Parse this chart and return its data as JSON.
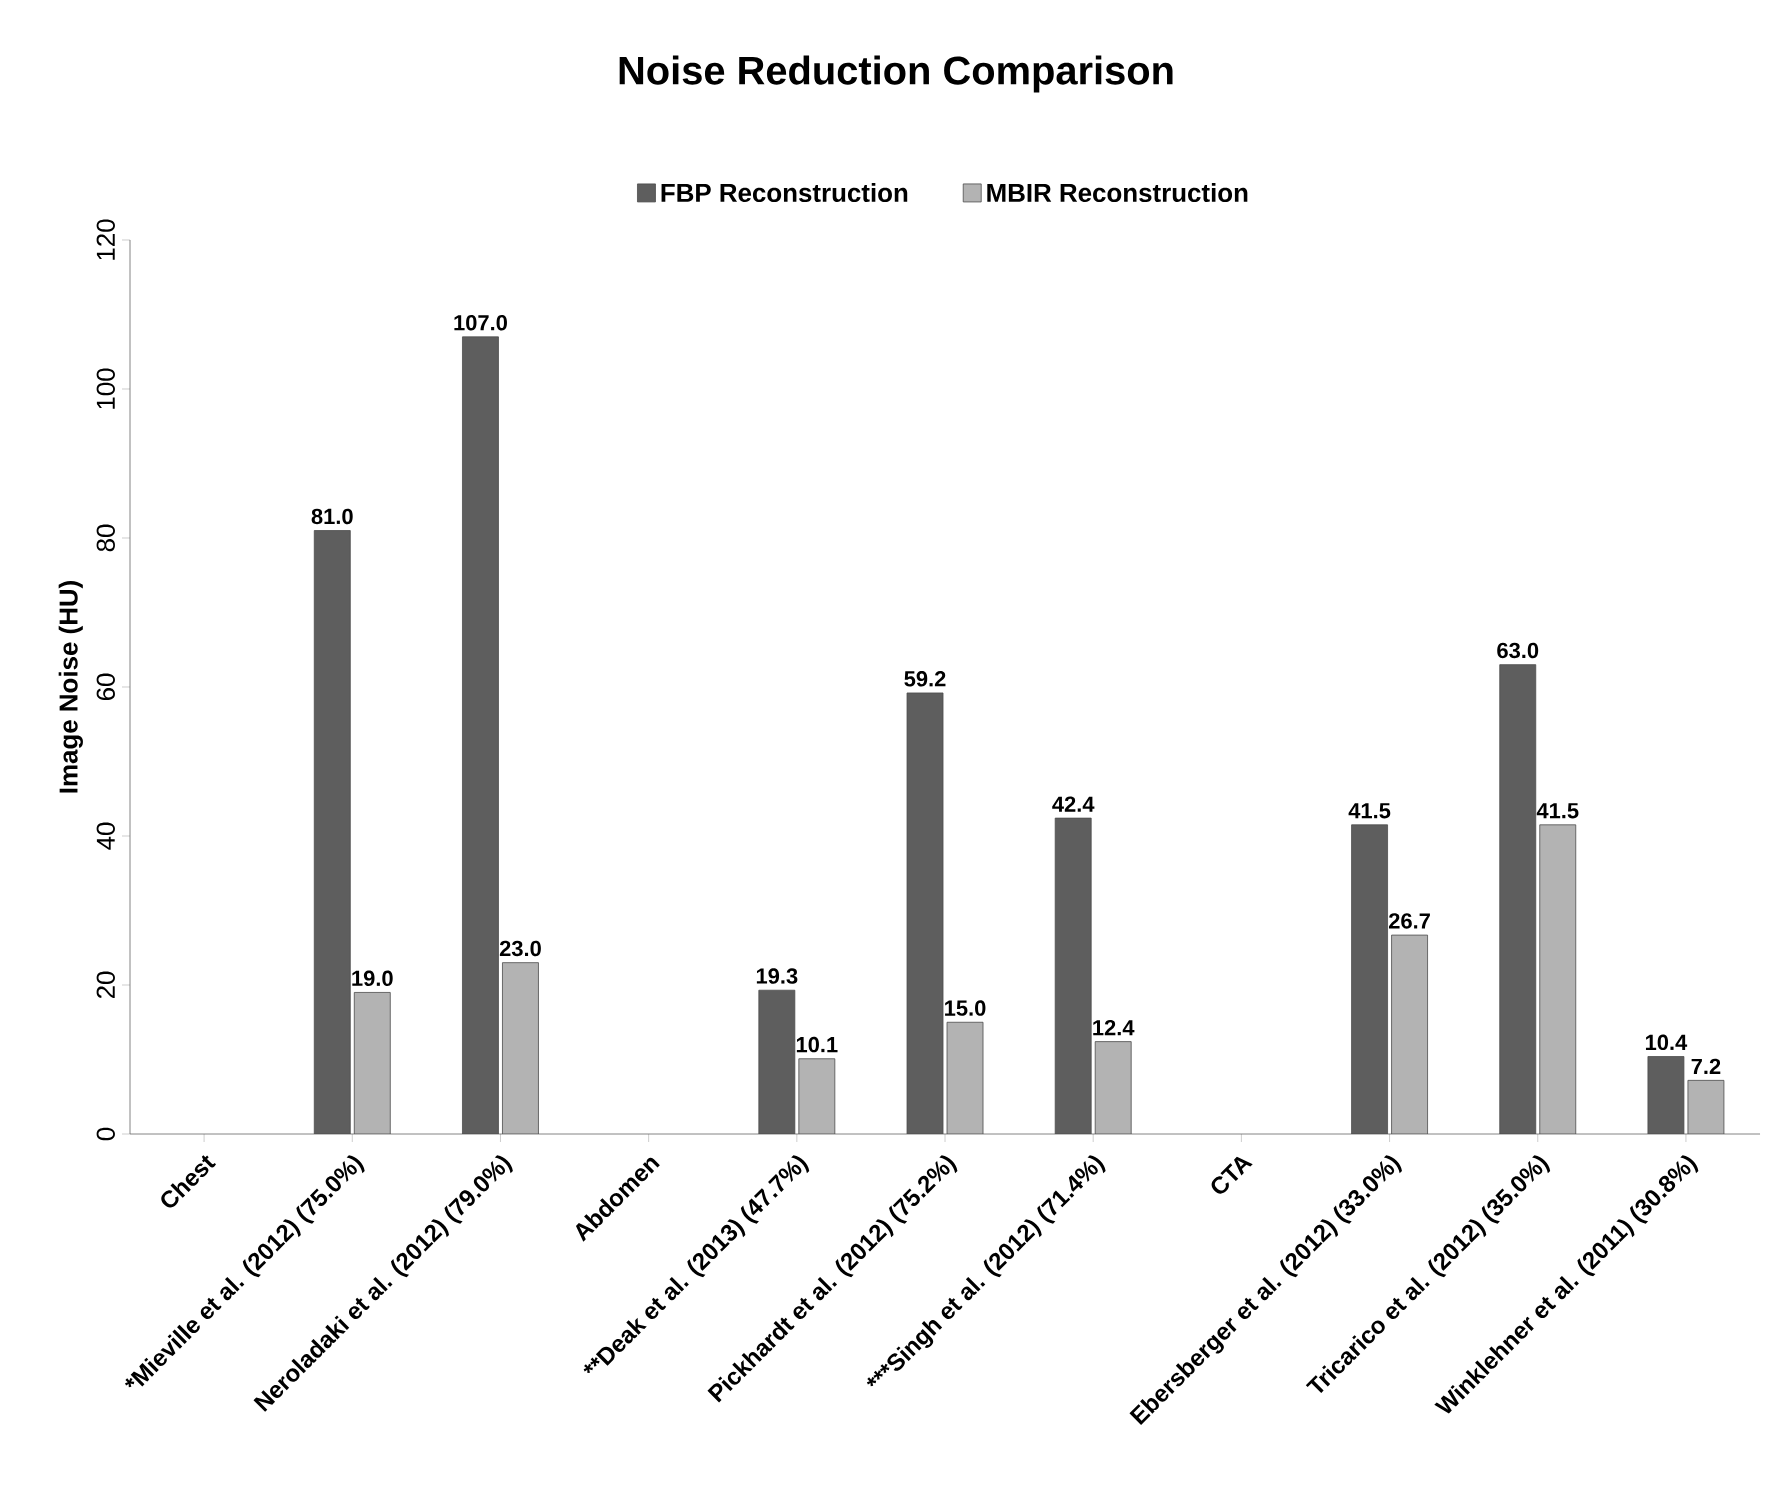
{
  "chart_data": {
    "type": "bar",
    "title": "Noise Reduction Comparison",
    "ylabel": "Image Noise (HU)",
    "categories": [
      "Chest",
      "*Mieville et al. (2012) (75.0%)",
      "Neroladaki et al. (2012) (79.0%)",
      "Abdomen",
      "**Deak et al. (2013) (47.7%)",
      "Pickhardt et al. (2012) (75.2%)",
      "***Singh et al. (2012) (71.4%)",
      "CTA",
      "Ebersberger et al. (2012) (33.0%)",
      "Tricarico et al. (2012) (35.0%)",
      "Winklehner et al. (2011) (30.8%)"
    ],
    "series": [
      {
        "name": "FBP Reconstruction",
        "color": "#5e5e5e",
        "values": [
          null,
          81.0,
          107.0,
          null,
          19.3,
          59.2,
          42.4,
          null,
          41.5,
          63.0,
          10.4
        ],
        "value_labels": [
          null,
          "81.0",
          "107.0",
          null,
          "19.3",
          "59.2",
          "42.4",
          null,
          "41.5",
          "63.0",
          "10.4"
        ]
      },
      {
        "name": "MBIR Reconstruction",
        "color": "#b3b3b3",
        "values": [
          null,
          19.0,
          23.0,
          null,
          10.1,
          15.0,
          12.4,
          null,
          26.7,
          41.5,
          7.2
        ],
        "value_labels": [
          null,
          "19.0",
          "23.0",
          null,
          "10.1",
          "15.0",
          "12.4",
          null,
          "26.7",
          "41.5",
          "7.2"
        ]
      }
    ],
    "ylim": [
      0,
      120
    ],
    "yticks": [
      0,
      20,
      40,
      60,
      80,
      100,
      120
    ],
    "legend": "top",
    "grid": false
  }
}
